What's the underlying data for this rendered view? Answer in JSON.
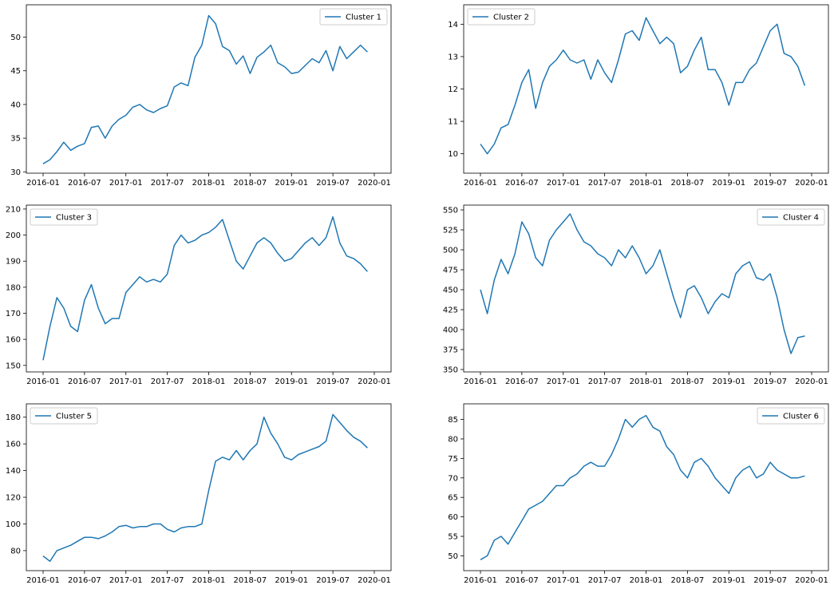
{
  "figure": {
    "background": "#ffffff",
    "line_color": "#1f77b4",
    "frame_color": "#000000"
  },
  "chart_data": [
    {
      "type": "line",
      "legend": "top-right",
      "x_ticks": [
        "2016-01",
        "2016-07",
        "2017-01",
        "2017-07",
        "2018-01",
        "2018-07",
        "2019-01",
        "2019-07",
        "2020-01"
      ],
      "x_range": [
        "2016-01",
        "2020-01"
      ],
      "ylim": [
        29.8,
        54.8
      ],
      "y_ticks": [
        30,
        35,
        40,
        45,
        50
      ],
      "series": [
        {
          "name": "Cluster 1",
          "x": [
            "2016-01",
            "2016-02",
            "2016-03",
            "2016-04",
            "2016-05",
            "2016-06",
            "2016-07",
            "2016-08",
            "2016-09",
            "2016-10",
            "2016-11",
            "2016-12",
            "2017-01",
            "2017-02",
            "2017-03",
            "2017-04",
            "2017-05",
            "2017-06",
            "2017-07",
            "2017-08",
            "2017-09",
            "2017-10",
            "2017-11",
            "2017-12",
            "2018-01",
            "2018-02",
            "2018-03",
            "2018-04",
            "2018-05",
            "2018-06",
            "2018-07",
            "2018-08",
            "2018-09",
            "2018-10",
            "2018-11",
            "2018-12",
            "2019-01",
            "2019-02",
            "2019-03",
            "2019-04",
            "2019-05",
            "2019-06",
            "2019-07",
            "2019-08",
            "2019-09",
            "2019-10",
            "2019-11",
            "2019-12"
          ],
          "y": [
            31.2,
            31.8,
            33.0,
            34.4,
            33.2,
            33.8,
            34.2,
            36.6,
            36.8,
            35.0,
            36.8,
            37.8,
            38.4,
            39.6,
            40.0,
            39.2,
            38.8,
            39.4,
            39.8,
            42.6,
            43.2,
            42.8,
            47.0,
            48.8,
            53.2,
            52.0,
            48.6,
            48.0,
            46.0,
            47.2,
            44.6,
            47.0,
            47.8,
            48.8,
            46.2,
            45.6,
            44.6,
            44.8,
            45.8,
            46.8,
            46.2,
            48.0,
            45.0,
            48.6,
            46.8,
            47.8,
            48.8,
            47.8
          ]
        }
      ]
    },
    {
      "type": "line",
      "legend": "top-left",
      "x_ticks": [
        "2016-01",
        "2016-07",
        "2017-01",
        "2017-07",
        "2018-01",
        "2018-07",
        "2019-01",
        "2019-07",
        "2020-01"
      ],
      "x_range": [
        "2016-01",
        "2020-01"
      ],
      "ylim": [
        9.4,
        14.6
      ],
      "y_ticks": [
        10,
        11,
        12,
        13,
        14
      ],
      "series": [
        {
          "name": "Cluster 2",
          "x": [
            "2016-01",
            "2016-02",
            "2016-03",
            "2016-04",
            "2016-05",
            "2016-06",
            "2016-07",
            "2016-08",
            "2016-09",
            "2016-10",
            "2016-11",
            "2016-12",
            "2017-01",
            "2017-02",
            "2017-03",
            "2017-04",
            "2017-05",
            "2017-06",
            "2017-07",
            "2017-08",
            "2017-09",
            "2017-10",
            "2017-11",
            "2017-12",
            "2018-01",
            "2018-02",
            "2018-03",
            "2018-04",
            "2018-05",
            "2018-06",
            "2018-07",
            "2018-08",
            "2018-09",
            "2018-10",
            "2018-11",
            "2018-12",
            "2019-01",
            "2019-02",
            "2019-03",
            "2019-04",
            "2019-05",
            "2019-06",
            "2019-07",
            "2019-08",
            "2019-09",
            "2019-10",
            "2019-11",
            "2019-12"
          ],
          "y": [
            10.3,
            10.0,
            10.3,
            10.8,
            10.9,
            11.5,
            12.2,
            12.6,
            11.4,
            12.2,
            12.7,
            12.9,
            13.2,
            12.9,
            12.8,
            12.9,
            12.3,
            12.9,
            12.5,
            12.2,
            12.9,
            13.7,
            13.8,
            13.5,
            14.2,
            13.8,
            13.4,
            13.6,
            13.4,
            12.5,
            12.7,
            13.2,
            13.6,
            12.6,
            12.6,
            12.2,
            11.5,
            12.2,
            12.2,
            12.6,
            12.8,
            13.3,
            13.8,
            14.0,
            13.1,
            13.0,
            12.7,
            12.1
          ]
        }
      ]
    },
    {
      "type": "line",
      "legend": "top-left",
      "x_ticks": [
        "2016-01",
        "2016-07",
        "2017-01",
        "2017-07",
        "2018-01",
        "2018-07",
        "2019-01",
        "2019-07",
        "2020-01"
      ],
      "x_range": [
        "2016-01",
        "2020-01"
      ],
      "ylim": [
        147.5,
        211.5
      ],
      "y_ticks": [
        150,
        160,
        170,
        180,
        190,
        200,
        210
      ],
      "series": [
        {
          "name": "Cluster 3",
          "x": [
            "2016-01",
            "2016-02",
            "2016-03",
            "2016-04",
            "2016-05",
            "2016-06",
            "2016-07",
            "2016-08",
            "2016-09",
            "2016-10",
            "2016-11",
            "2016-12",
            "2017-01",
            "2017-02",
            "2017-03",
            "2017-04",
            "2017-05",
            "2017-06",
            "2017-07",
            "2017-08",
            "2017-09",
            "2017-10",
            "2017-11",
            "2017-12",
            "2018-01",
            "2018-02",
            "2018-03",
            "2018-04",
            "2018-05",
            "2018-06",
            "2018-07",
            "2018-08",
            "2018-09",
            "2018-10",
            "2018-11",
            "2018-12",
            "2019-01",
            "2019-02",
            "2019-03",
            "2019-04",
            "2019-05",
            "2019-06",
            "2019-07",
            "2019-08",
            "2019-09",
            "2019-10",
            "2019-11",
            "2019-12"
          ],
          "y": [
            152,
            165,
            176,
            172,
            165,
            163,
            175,
            181,
            172,
            166,
            168,
            168,
            178,
            181,
            184,
            182,
            183,
            182,
            185,
            196,
            200,
            197,
            198,
            200,
            201,
            203,
            206,
            198,
            190,
            187,
            192,
            197,
            199,
            197,
            193,
            190,
            191,
            194,
            197,
            199,
            196,
            199,
            207,
            197,
            192,
            191,
            189,
            186
          ]
        }
      ]
    },
    {
      "type": "line",
      "legend": "top-right",
      "x_ticks": [
        "2016-01",
        "2016-07",
        "2017-01",
        "2017-07",
        "2018-01",
        "2018-07",
        "2019-01",
        "2019-07",
        "2020-01"
      ],
      "x_range": [
        "2016-01",
        "2020-01"
      ],
      "ylim": [
        347,
        556
      ],
      "y_ticks": [
        350,
        375,
        400,
        425,
        450,
        475,
        500,
        525,
        550
      ],
      "series": [
        {
          "name": "Cluster 4",
          "x": [
            "2016-01",
            "2016-02",
            "2016-03",
            "2016-04",
            "2016-05",
            "2016-06",
            "2016-07",
            "2016-08",
            "2016-09",
            "2016-10",
            "2016-11",
            "2016-12",
            "2017-01",
            "2017-02",
            "2017-03",
            "2017-04",
            "2017-05",
            "2017-06",
            "2017-07",
            "2017-08",
            "2017-09",
            "2017-10",
            "2017-11",
            "2017-12",
            "2018-01",
            "2018-02",
            "2018-03",
            "2018-04",
            "2018-05",
            "2018-06",
            "2018-07",
            "2018-08",
            "2018-09",
            "2018-10",
            "2018-11",
            "2018-12",
            "2019-01",
            "2019-02",
            "2019-03",
            "2019-04",
            "2019-05",
            "2019-06",
            "2019-07",
            "2019-08",
            "2019-09",
            "2019-10",
            "2019-11",
            "2019-12"
          ],
          "y": [
            450,
            420,
            462,
            488,
            470,
            495,
            535,
            520,
            490,
            480,
            512,
            525,
            535,
            545,
            525,
            510,
            505,
            495,
            490,
            480,
            500,
            490,
            505,
            490,
            470,
            480,
            500,
            470,
            440,
            415,
            450,
            455,
            440,
            420,
            435,
            445,
            440,
            470,
            480,
            485,
            465,
            462,
            470,
            440,
            400,
            370,
            390,
            392
          ]
        }
      ]
    },
    {
      "type": "line",
      "legend": "top-left",
      "x_ticks": [
        "2016-01",
        "2016-07",
        "2017-01",
        "2017-07",
        "2018-01",
        "2018-07",
        "2019-01",
        "2019-07",
        "2020-01"
      ],
      "x_range": [
        "2016-01",
        "2020-01"
      ],
      "ylim": [
        65,
        190
      ],
      "y_ticks": [
        80,
        100,
        120,
        140,
        160,
        180
      ],
      "series": [
        {
          "name": "Cluster 5",
          "x": [
            "2016-01",
            "2016-02",
            "2016-03",
            "2016-04",
            "2016-05",
            "2016-06",
            "2016-07",
            "2016-08",
            "2016-09",
            "2016-10",
            "2016-11",
            "2016-12",
            "2017-01",
            "2017-02",
            "2017-03",
            "2017-04",
            "2017-05",
            "2017-06",
            "2017-07",
            "2017-08",
            "2017-09",
            "2017-10",
            "2017-11",
            "2017-12",
            "2018-01",
            "2018-02",
            "2018-03",
            "2018-04",
            "2018-05",
            "2018-06",
            "2018-07",
            "2018-08",
            "2018-09",
            "2018-10",
            "2018-11",
            "2018-12",
            "2019-01",
            "2019-02",
            "2019-03",
            "2019-04",
            "2019-05",
            "2019-06",
            "2019-07",
            "2019-08",
            "2019-09",
            "2019-10",
            "2019-11",
            "2019-12"
          ],
          "y": [
            76,
            72,
            80,
            82,
            84,
            87,
            90,
            90,
            89,
            91,
            94,
            98,
            99,
            97,
            98,
            98,
            100,
            100,
            96,
            94,
            97,
            98,
            98,
            100,
            125,
            147,
            150,
            148,
            155,
            148,
            155,
            160,
            180,
            168,
            160,
            150,
            148,
            152,
            154,
            156,
            158,
            162,
            182,
            176,
            170,
            165,
            162,
            157
          ]
        }
      ]
    },
    {
      "type": "line",
      "legend": "top-right",
      "x_ticks": [
        "2016-01",
        "2016-07",
        "2017-01",
        "2017-07",
        "2018-01",
        "2018-07",
        "2019-01",
        "2019-07",
        "2020-01"
      ],
      "x_range": [
        "2016-01",
        "2020-01"
      ],
      "ylim": [
        46.2,
        89
      ],
      "y_ticks": [
        50,
        55,
        60,
        65,
        70,
        75,
        80,
        85
      ],
      "series": [
        {
          "name": "Cluster 6",
          "x": [
            "2016-01",
            "2016-02",
            "2016-03",
            "2016-04",
            "2016-05",
            "2016-06",
            "2016-07",
            "2016-08",
            "2016-09",
            "2016-10",
            "2016-11",
            "2016-12",
            "2017-01",
            "2017-02",
            "2017-03",
            "2017-04",
            "2017-05",
            "2017-06",
            "2017-07",
            "2017-08",
            "2017-09",
            "2017-10",
            "2017-11",
            "2017-12",
            "2018-01",
            "2018-02",
            "2018-03",
            "2018-04",
            "2018-05",
            "2018-06",
            "2018-07",
            "2018-08",
            "2018-09",
            "2018-10",
            "2018-11",
            "2018-12",
            "2019-01",
            "2019-02",
            "2019-03",
            "2019-04",
            "2019-05",
            "2019-06",
            "2019-07",
            "2019-08",
            "2019-09",
            "2019-10",
            "2019-11",
            "2019-12"
          ],
          "y": [
            49,
            50,
            54,
            55,
            53,
            56,
            59,
            62,
            63,
            64,
            66,
            68,
            68,
            70,
            71,
            73,
            74,
            73,
            73,
            76,
            80,
            85,
            83,
            85,
            86,
            83,
            82,
            78,
            76,
            72,
            70,
            74,
            75,
            73,
            70,
            68,
            66,
            70,
            72,
            73,
            70,
            71,
            74,
            72,
            71,
            70,
            70,
            70.5
          ]
        }
      ]
    }
  ]
}
